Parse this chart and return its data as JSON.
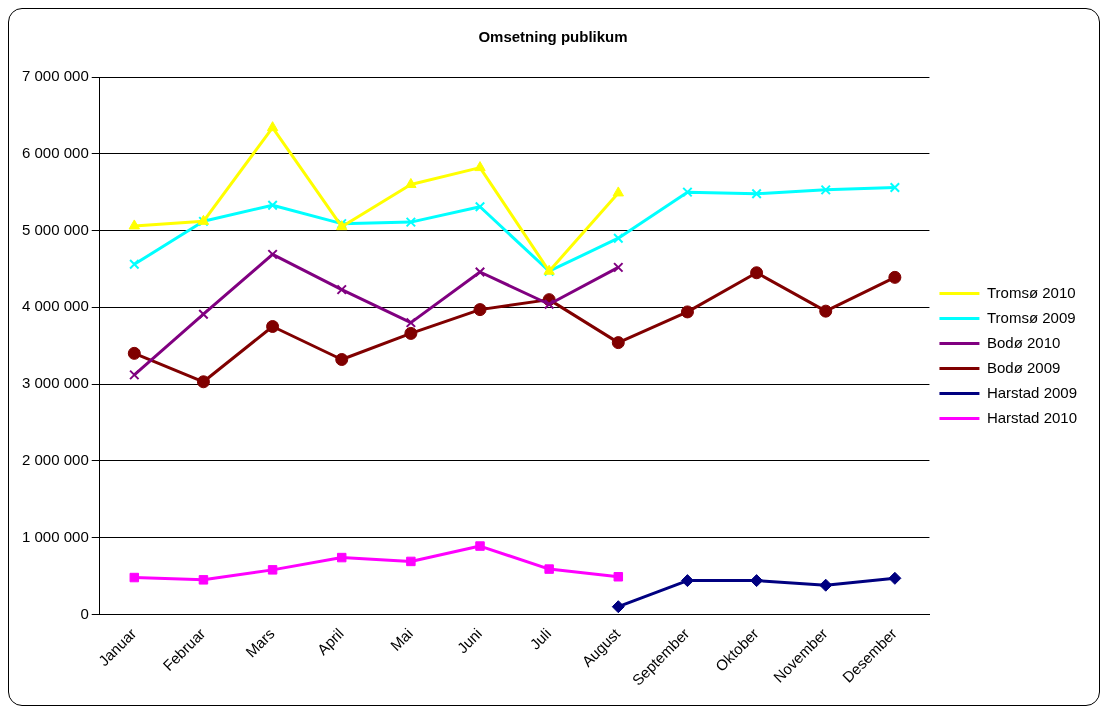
{
  "chart_data": {
    "type": "line",
    "title": "Omsetning publikum",
    "categories": [
      "Januar",
      "Februar",
      "Mars",
      "April",
      "Mai",
      "Juni",
      "Juli",
      "August",
      "September",
      "Oktober",
      "November",
      "Desember"
    ],
    "series": [
      {
        "name": "Tromsø 2010",
        "color": "#ffff00",
        "marker": "triangle",
        "values": [
          5060000,
          5120000,
          6340000,
          5050000,
          5600000,
          5820000,
          4470000,
          5490000,
          null,
          null,
          null,
          null
        ]
      },
      {
        "name": "Tromsø 2009",
        "color": "#00ffff",
        "marker": "cross",
        "values": [
          4560000,
          5120000,
          5330000,
          5090000,
          5110000,
          5310000,
          4470000,
          4900000,
          5500000,
          5480000,
          5530000,
          5560000
        ]
      },
      {
        "name": "Bodø 2010",
        "color": "#800080",
        "marker": "cross",
        "values": [
          3120000,
          3910000,
          4690000,
          4230000,
          3800000,
          4460000,
          4040000,
          4520000,
          null,
          null,
          null,
          null
        ]
      },
      {
        "name": "Bodø 2009",
        "color": "#800000",
        "marker": "circle",
        "values": [
          3400000,
          3030000,
          3750000,
          3320000,
          3660000,
          3970000,
          4100000,
          3540000,
          3940000,
          4450000,
          3950000,
          4390000
        ]
      },
      {
        "name": "Harstad 2009",
        "color": "#000080",
        "marker": "diamond",
        "values": [
          null,
          null,
          null,
          null,
          null,
          null,
          null,
          100000,
          440000,
          440000,
          380000,
          470000
        ]
      },
      {
        "name": "Harstad 2010",
        "color": "#ff00ff",
        "marker": "square",
        "values": [
          480000,
          450000,
          580000,
          740000,
          690000,
          890000,
          590000,
          490000,
          null,
          null,
          null,
          null
        ]
      }
    ],
    "ylim": [
      0,
      7000000
    ],
    "yticks": [
      {
        "value": 0,
        "label": "0"
      },
      {
        "value": 1000000,
        "label": "1 000 000"
      },
      {
        "value": 2000000,
        "label": "2 000 000"
      },
      {
        "value": 3000000,
        "label": "3 000 000"
      },
      {
        "value": 4000000,
        "label": "4 000 000"
      },
      {
        "value": 5000000,
        "label": "5 000 000"
      },
      {
        "value": 6000000,
        "label": "6 000 000"
      },
      {
        "value": 7000000,
        "label": "7 000 000"
      }
    ],
    "grid": "y",
    "legend": "right",
    "line_style": "solid"
  }
}
